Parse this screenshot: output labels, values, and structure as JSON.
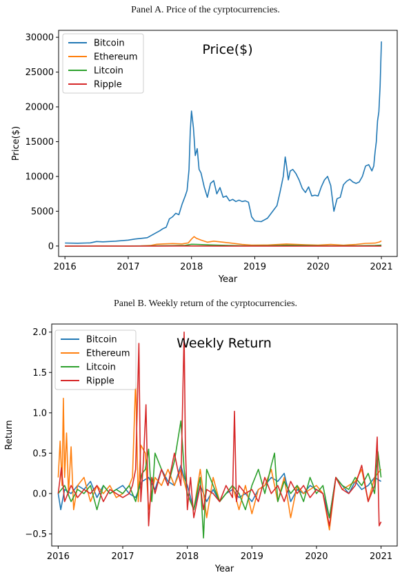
{
  "panels": {
    "a_caption": "Panel A. Price of the cyrptocurrencies.",
    "b_caption": "Panel B. Weekly return of the cyrptocurrencies."
  },
  "colors": {
    "Bitcoin": "#1f77b4",
    "Ethereum": "#ff7f0e",
    "Litcoin": "#2ca02c",
    "Ripple": "#d62728"
  },
  "chart_data": [
    {
      "type": "line",
      "title": "Price($)",
      "xlabel": "Year",
      "ylabel": "Price($)",
      "xlim": [
        2015.9,
        2021.25
      ],
      "ylim": [
        -1500,
        31000
      ],
      "xticks": [
        2016,
        2017,
        2018,
        2019,
        2020,
        2021
      ],
      "yticks": [
        0,
        5000,
        10000,
        15000,
        20000,
        25000,
        30000
      ],
      "legend": "top-left",
      "series": [
        {
          "name": "Bitcoin",
          "x": [
            2016.0,
            2016.2,
            2016.4,
            2016.5,
            2016.6,
            2016.8,
            2017.0,
            2017.1,
            2017.2,
            2017.3,
            2017.4,
            2017.5,
            2017.55,
            2017.6,
            2017.65,
            2017.7,
            2017.75,
            2017.8,
            2017.85,
            2017.9,
            2017.93,
            2017.96,
            2017.98,
            2018.0,
            2018.03,
            2018.06,
            2018.09,
            2018.12,
            2018.15,
            2018.2,
            2018.25,
            2018.3,
            2018.35,
            2018.4,
            2018.45,
            2018.5,
            2018.55,
            2018.6,
            2018.65,
            2018.7,
            2018.75,
            2018.8,
            2018.85,
            2018.9,
            2018.95,
            2019.0,
            2019.1,
            2019.2,
            2019.3,
            2019.35,
            2019.4,
            2019.45,
            2019.48,
            2019.5,
            2019.53,
            2019.56,
            2019.6,
            2019.65,
            2019.7,
            2019.75,
            2019.8,
            2019.85,
            2019.9,
            2019.95,
            2020.0,
            2020.05,
            2020.1,
            2020.15,
            2020.2,
            2020.25,
            2020.3,
            2020.35,
            2020.4,
            2020.45,
            2020.5,
            2020.55,
            2020.6,
            2020.65,
            2020.7,
            2020.75,
            2020.8,
            2020.85,
            2020.88,
            2020.9,
            2020.92,
            2020.94,
            2020.96,
            2020.98,
            2021.0
          ],
          "values": [
            430,
            400,
            450,
            650,
            600,
            700,
            850,
            1000,
            1100,
            1200,
            1700,
            2200,
            2500,
            2700,
            3900,
            4200,
            4700,
            4500,
            6000,
            7200,
            8000,
            11000,
            16500,
            19400,
            17000,
            13000,
            14000,
            11000,
            10500,
            8500,
            7000,
            9000,
            9400,
            7500,
            8400,
            7000,
            7200,
            6500,
            6700,
            6400,
            6600,
            6400,
            6500,
            6300,
            4200,
            3600,
            3500,
            4000,
            5200,
            5800,
            7800,
            10000,
            12800,
            11600,
            9500,
            10800,
            11000,
            10400,
            9500,
            8300,
            7700,
            8500,
            7200,
            7300,
            7200,
            8500,
            9500,
            10000,
            8700,
            5000,
            6800,
            7000,
            8800,
            9300,
            9600,
            9200,
            9000,
            9200,
            10000,
            11500,
            11700,
            10800,
            11500,
            13500,
            15000,
            18000,
            19300,
            23000,
            29400
          ]
        },
        {
          "name": "Ethereum",
          "x": [
            2016.0,
            2016.5,
            2017.0,
            2017.2,
            2017.35,
            2017.45,
            2017.55,
            2017.7,
            2017.85,
            2017.95,
            2018.0,
            2018.04,
            2018.08,
            2018.15,
            2018.25,
            2018.35,
            2018.45,
            2018.6,
            2018.8,
            2018.95,
            2019.2,
            2019.5,
            2019.8,
            2020.0,
            2020.2,
            2020.4,
            2020.6,
            2020.75,
            2020.9,
            2020.97,
            2021.0
          ],
          "values": [
            1,
            12,
            10,
            20,
            80,
            250,
            300,
            350,
            300,
            450,
            1000,
            1350,
            1100,
            850,
            550,
            700,
            600,
            450,
            230,
            130,
            140,
            290,
            180,
            130,
            230,
            120,
            230,
            380,
            420,
            580,
            740
          ]
        },
        {
          "name": "Litcoin",
          "x": [
            2016.0,
            2016.5,
            2017.0,
            2017.3,
            2017.5,
            2017.7,
            2017.9,
            2018.0,
            2018.1,
            2018.3,
            2018.6,
            2018.9,
            2019.2,
            2019.5,
            2019.8,
            2020.0,
            2020.3,
            2020.6,
            2020.9,
            2021.0
          ],
          "values": [
            3,
            4,
            4,
            15,
            45,
            60,
            100,
            250,
            220,
            150,
            80,
            35,
            45,
            120,
            75,
            45,
            40,
            50,
            90,
            125
          ]
        },
        {
          "name": "Ripple",
          "x": [
            2016.0,
            2016.5,
            2017.0,
            2017.5,
            2018.0,
            2018.5,
            2019.0,
            2019.5,
            2020.0,
            2020.5,
            2021.0
          ],
          "values": [
            0.006,
            0.007,
            0.006,
            0.2,
            2.8,
            0.45,
            0.35,
            0.4,
            0.2,
            0.2,
            0.22
          ]
        }
      ]
    },
    {
      "type": "line",
      "title": "Weekly Return",
      "xlabel": "Year",
      "ylabel": "Return",
      "xlim": [
        2015.9,
        2021.25
      ],
      "ylim": [
        -0.65,
        2.1
      ],
      "xticks": [
        2016,
        2017,
        2018,
        2019,
        2020,
        2021
      ],
      "yticks": [
        -0.5,
        0.0,
        0.5,
        1.0,
        1.5,
        2.0
      ],
      "legend": "top-left",
      "series": [
        {
          "name": "Bitcoin",
          "x": [
            2016.0,
            2016.04,
            2016.1,
            2016.2,
            2016.3,
            2016.4,
            2016.5,
            2016.6,
            2016.7,
            2016.8,
            2016.9,
            2017.0,
            2017.1,
            2017.2,
            2017.3,
            2017.4,
            2017.5,
            2017.6,
            2017.7,
            2017.8,
            2017.9,
            2017.95,
            2018.0,
            2018.1,
            2018.2,
            2018.3,
            2018.4,
            2018.5,
            2018.6,
            2018.7,
            2018.8,
            2018.9,
            2019.0,
            2019.1,
            2019.2,
            2019.3,
            2019.4,
            2019.5,
            2019.6,
            2019.7,
            2019.8,
            2019.9,
            2020.0,
            2020.1,
            2020.2,
            2020.3,
            2020.4,
            2020.5,
            2020.6,
            2020.7,
            2020.8,
            2020.9,
            2021.0
          ],
          "values": [
            0.0,
            -0.2,
            0.05,
            0.0,
            0.1,
            0.05,
            0.15,
            -0.05,
            0.1,
            0.0,
            0.05,
            0.1,
            0.0,
            -0.05,
            0.15,
            0.2,
            0.05,
            0.3,
            0.15,
            0.1,
            0.35,
            0.2,
            0.1,
            -0.2,
            0.1,
            -0.1,
            0.05,
            -0.1,
            0.0,
            0.05,
            -0.05,
            0.0,
            -0.1,
            0.05,
            0.1,
            0.2,
            0.15,
            0.25,
            -0.1,
            0.05,
            0.0,
            0.1,
            0.05,
            0.0,
            -0.3,
            0.2,
            0.1,
            0.0,
            0.15,
            0.05,
            0.1,
            0.2,
            0.15
          ]
        },
        {
          "name": "Ethereum",
          "x": [
            2016.0,
            2016.03,
            2016.06,
            2016.08,
            2016.1,
            2016.13,
            2016.16,
            2016.2,
            2016.24,
            2016.3,
            2016.4,
            2016.5,
            2016.6,
            2016.7,
            2016.8,
            2016.9,
            2017.0,
            2017.1,
            2017.15,
            2017.2,
            2017.24,
            2017.28,
            2017.35,
            2017.4,
            2017.5,
            2017.6,
            2017.7,
            2017.8,
            2017.9,
            2018.0,
            2018.1,
            2018.2,
            2018.3,
            2018.4,
            2018.5,
            2018.6,
            2018.7,
            2018.8,
            2018.9,
            2019.0,
            2019.1,
            2019.2,
            2019.3,
            2019.4,
            2019.5,
            2019.6,
            2019.7,
            2019.8,
            2019.9,
            2020.0,
            2020.1,
            2020.2,
            2020.3,
            2020.4,
            2020.5,
            2020.6,
            2020.7,
            2020.8,
            2020.9,
            2021.0
          ],
          "values": [
            0.2,
            0.65,
            0.1,
            1.18,
            0.2,
            0.75,
            0.0,
            0.58,
            -0.2,
            0.1,
            0.2,
            -0.1,
            0.1,
            0.0,
            0.1,
            -0.05,
            0.0,
            0.1,
            0.2,
            1.4,
            -0.1,
            0.6,
            0.5,
            -0.2,
            0.2,
            0.1,
            0.3,
            0.1,
            0.3,
            0.0,
            -0.2,
            0.3,
            -0.3,
            0.2,
            -0.1,
            0.0,
            0.1,
            -0.2,
            0.1,
            -0.25,
            0.05,
            0.1,
            0.3,
            -0.1,
            0.2,
            -0.3,
            0.1,
            0.0,
            0.05,
            0.1,
            0.0,
            -0.45,
            0.2,
            0.05,
            0.1,
            0.15,
            0.3,
            -0.1,
            0.2,
            0.3
          ]
        },
        {
          "name": "Litcoin",
          "x": [
            2016.0,
            2016.1,
            2016.2,
            2016.3,
            2016.4,
            2016.5,
            2016.6,
            2016.7,
            2016.8,
            2016.9,
            2017.0,
            2017.1,
            2017.2,
            2017.3,
            2017.35,
            2017.4,
            2017.45,
            2017.5,
            2017.6,
            2017.7,
            2017.8,
            2017.9,
            2017.95,
            2018.0,
            2018.1,
            2018.2,
            2018.25,
            2018.3,
            2018.4,
            2018.5,
            2018.6,
            2018.7,
            2018.8,
            2018.9,
            2019.0,
            2019.1,
            2019.2,
            2019.3,
            2019.35,
            2019.4,
            2019.5,
            2019.6,
            2019.7,
            2019.8,
            2019.9,
            2020.0,
            2020.1,
            2020.2,
            2020.3,
            2020.4,
            2020.5,
            2020.6,
            2020.7,
            2020.8,
            2020.9,
            2020.95,
            2021.0
          ],
          "values": [
            0.0,
            0.1,
            -0.1,
            0.05,
            0.0,
            0.1,
            -0.2,
            0.1,
            0.0,
            0.05,
            0.0,
            0.1,
            -0.1,
            0.25,
            0.3,
            0.55,
            -0.1,
            0.5,
            0.3,
            0.1,
            0.4,
            0.9,
            0.3,
            0.0,
            -0.2,
            0.2,
            -0.55,
            0.3,
            0.1,
            -0.1,
            0.0,
            0.1,
            0.0,
            -0.2,
            0.1,
            0.3,
            0.0,
            0.35,
            0.5,
            -0.1,
            0.15,
            0.0,
            0.1,
            -0.1,
            0.2,
            0.0,
            0.1,
            -0.3,
            0.2,
            0.1,
            0.05,
            0.2,
            0.1,
            0.25,
            0.0,
            0.52,
            0.2
          ]
        },
        {
          "name": "Ripple",
          "x": [
            2016.0,
            2016.05,
            2016.1,
            2016.2,
            2016.3,
            2016.4,
            2016.5,
            2016.6,
            2016.7,
            2016.8,
            2016.9,
            2017.0,
            2017.1,
            2017.15,
            2017.2,
            2017.25,
            2017.28,
            2017.32,
            2017.36,
            2017.4,
            2017.45,
            2017.5,
            2017.6,
            2017.7,
            2017.8,
            2017.9,
            2017.95,
            2017.97,
            2018.0,
            2018.05,
            2018.1,
            2018.2,
            2018.25,
            2018.3,
            2018.4,
            2018.5,
            2018.6,
            2018.7,
            2018.73,
            2018.76,
            2018.8,
            2018.9,
            2019.0,
            2019.1,
            2019.2,
            2019.3,
            2019.4,
            2019.5,
            2019.6,
            2019.7,
            2019.8,
            2019.9,
            2020.0,
            2020.1,
            2020.2,
            2020.3,
            2020.4,
            2020.5,
            2020.6,
            2020.7,
            2020.8,
            2020.9,
            2020.94,
            2020.97,
            2021.0
          ],
          "values": [
            0.0,
            0.32,
            -0.1,
            0.1,
            -0.05,
            0.05,
            0.0,
            0.1,
            -0.1,
            0.05,
            0.0,
            -0.05,
            0.0,
            0.1,
            0.3,
            1.86,
            -0.1,
            0.4,
            1.1,
            -0.4,
            0.2,
            0.0,
            0.3,
            0.1,
            0.5,
            0.1,
            2.0,
            0.6,
            -0.2,
            0.2,
            -0.3,
            0.1,
            -0.2,
            0.05,
            0.0,
            -0.1,
            0.1,
            -0.05,
            1.02,
            -0.1,
            0.1,
            0.0,
            0.05,
            -0.1,
            0.2,
            0.0,
            0.1,
            -0.1,
            0.15,
            0.0,
            0.1,
            -0.05,
            0.05,
            0.0,
            -0.4,
            0.2,
            0.05,
            0.0,
            0.1,
            0.35,
            -0.1,
            0.1,
            0.7,
            -0.4,
            -0.35
          ]
        }
      ]
    }
  ]
}
